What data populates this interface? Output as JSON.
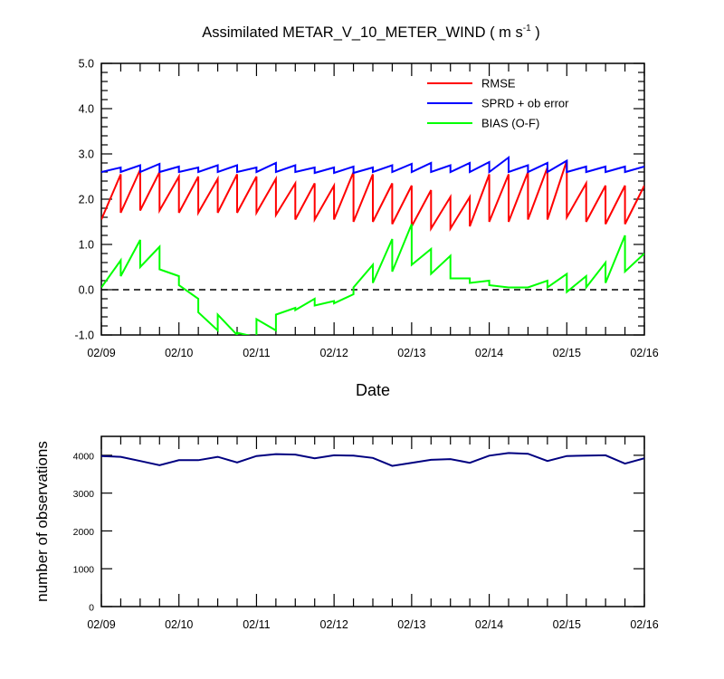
{
  "chart_data": [
    {
      "type": "line",
      "title": "Assimilated METAR_V_10_METER_WIND",
      "title_units": "( m s",
      "title_units_exp": "-1",
      "title_units_end": " )",
      "xlabel": "Date",
      "ylabel": "",
      "x_tick_labels": [
        "02/09",
        "02/10",
        "02/11",
        "02/12",
        "02/13",
        "02/14",
        "02/15",
        "02/16"
      ],
      "xlim": [
        0,
        84
      ],
      "ylim": [
        -1.0,
        5.0
      ],
      "y_tick_labels": [
        "-1.0",
        "0.0",
        "1.0",
        "2.0",
        "3.0",
        "4.0",
        "5.0"
      ],
      "y_ticks": [
        -1,
        0,
        1,
        2,
        3,
        4,
        5
      ],
      "reference_line": {
        "y": 0,
        "style": "dashed",
        "color": "#000000"
      },
      "legend_position": "top-right",
      "series": [
        {
          "name": "RMSE",
          "color": "#ff0000",
          "x": [
            0,
            3,
            3,
            6,
            6,
            9,
            9,
            12,
            12,
            15,
            15,
            18,
            18,
            21,
            21,
            24,
            24,
            27,
            27,
            30,
            30,
            33,
            33,
            36,
            36,
            39,
            39,
            42,
            42,
            45,
            45,
            48,
            48,
            51,
            51,
            54,
            54,
            57,
            57,
            60,
            60,
            63,
            63,
            66,
            66,
            69,
            69,
            72,
            72,
            75,
            75,
            78,
            78,
            81,
            81,
            84
          ],
          "y": [
            1.55,
            2.55,
            1.7,
            2.65,
            1.75,
            2.6,
            1.75,
            2.5,
            1.7,
            2.5,
            1.7,
            2.45,
            1.7,
            2.55,
            1.7,
            2.5,
            1.7,
            2.45,
            1.65,
            2.35,
            1.55,
            2.35,
            1.55,
            2.3,
            1.55,
            2.6,
            1.5,
            2.55,
            1.5,
            2.35,
            1.45,
            2.3,
            1.4,
            2.2,
            1.35,
            2.05,
            1.35,
            2.05,
            1.4,
            2.55,
            1.5,
            2.55,
            1.5,
            2.6,
            1.55,
            2.7,
            1.55,
            2.85,
            1.6,
            2.35,
            1.5,
            2.3,
            1.45,
            2.3,
            1.45,
            2.3
          ]
        },
        {
          "name": "SPRD + ob error",
          "color": "#0000ff",
          "x": [
            0,
            3,
            3,
            6,
            6,
            9,
            9,
            12,
            12,
            15,
            15,
            18,
            18,
            21,
            21,
            24,
            24,
            27,
            27,
            30,
            30,
            33,
            33,
            36,
            36,
            39,
            39,
            42,
            42,
            45,
            45,
            48,
            48,
            51,
            51,
            54,
            54,
            57,
            57,
            60,
            60,
            63,
            63,
            66,
            66,
            69,
            69,
            72,
            72,
            75,
            75,
            78,
            78,
            81,
            81,
            84
          ],
          "y": [
            2.6,
            2.7,
            2.6,
            2.75,
            2.6,
            2.78,
            2.6,
            2.72,
            2.6,
            2.7,
            2.6,
            2.75,
            2.6,
            2.75,
            2.6,
            2.7,
            2.6,
            2.8,
            2.6,
            2.75,
            2.6,
            2.7,
            2.58,
            2.7,
            2.58,
            2.72,
            2.58,
            2.7,
            2.6,
            2.75,
            2.6,
            2.78,
            2.6,
            2.8,
            2.6,
            2.75,
            2.6,
            2.8,
            2.6,
            2.82,
            2.6,
            2.92,
            2.6,
            2.75,
            2.6,
            2.8,
            2.6,
            2.85,
            2.6,
            2.72,
            2.6,
            2.72,
            2.6,
            2.72,
            2.6,
            2.72
          ]
        },
        {
          "name": "BIAS (O-F)",
          "color": "#00ff00",
          "x": [
            0,
            3,
            3,
            6,
            6,
            9,
            9,
            12,
            12,
            15,
            15,
            18,
            18,
            21,
            21,
            24,
            24,
            27,
            27,
            30,
            30,
            33,
            33,
            36,
            36,
            39,
            39,
            42,
            42,
            45,
            45,
            48,
            48,
            51,
            51,
            54,
            54,
            57,
            57,
            60,
            60,
            63,
            63,
            66,
            66,
            69,
            69,
            72,
            72,
            75,
            75,
            78,
            78,
            81,
            81,
            84
          ],
          "y": [
            0.05,
            0.65,
            0.3,
            1.1,
            0.5,
            0.95,
            0.45,
            0.3,
            0.1,
            -0.2,
            -0.5,
            -0.9,
            -0.55,
            -1.0,
            -0.95,
            -1.05,
            -0.65,
            -0.9,
            -0.55,
            -0.4,
            -0.45,
            -0.2,
            -0.35,
            -0.25,
            -0.3,
            -0.1,
            0.05,
            0.55,
            0.15,
            1.12,
            0.4,
            1.45,
            0.55,
            0.9,
            0.35,
            0.75,
            0.25,
            0.25,
            0.15,
            0.2,
            0.1,
            0.05,
            0.05,
            0.05,
            0.05,
            0.2,
            0.05,
            0.35,
            -0.05,
            0.3,
            0.05,
            0.6,
            0.15,
            1.2,
            0.4,
            0.8
          ]
        }
      ]
    },
    {
      "type": "line",
      "title": "",
      "xlabel": "",
      "ylabel": "number of observations",
      "x_tick_labels": [
        "02/09",
        "02/10",
        "02/11",
        "02/12",
        "02/13",
        "02/14",
        "02/15",
        "02/16"
      ],
      "xlim": [
        0,
        84
      ],
      "ylim": [
        0,
        4500
      ],
      "y_ticks": [
        0,
        1000,
        2000,
        3000,
        4000
      ],
      "y_tick_labels": [
        "0",
        "1000",
        "2000",
        "3000",
        "4000"
      ],
      "series": [
        {
          "color": "#000080",
          "x": [
            0,
            3,
            6,
            9,
            12,
            15,
            18,
            21,
            24,
            27,
            30,
            33,
            36,
            39,
            42,
            45,
            48,
            51,
            54,
            57,
            60,
            63,
            66,
            69,
            72,
            75,
            78,
            81,
            84
          ],
          "y": [
            3980,
            3960,
            3850,
            3740,
            3870,
            3870,
            3960,
            3810,
            3980,
            4030,
            4020,
            3920,
            4000,
            3990,
            3930,
            3720,
            3800,
            3880,
            3900,
            3800,
            3990,
            4060,
            4040,
            3850,
            3980,
            3990,
            4000,
            3780,
            3920
          ]
        }
      ]
    }
  ]
}
